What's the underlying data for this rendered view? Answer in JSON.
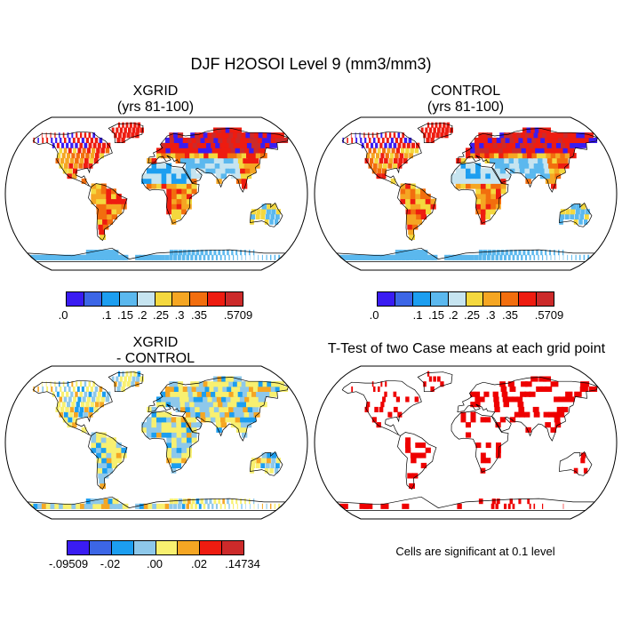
{
  "figure": {
    "title": "DJF H2OSOI Level 9 (mm3/mm3)"
  },
  "panels": [
    {
      "id": "xgrid",
      "title_line1": "XGRID",
      "title_line2": "(yrs 81-100)"
    },
    {
      "id": "control",
      "title_line1": "CONTROL",
      "title_line2": "(yrs 81-100)"
    },
    {
      "id": "diff",
      "title_line1": "XGRID",
      "title_line2": "- CONTROL"
    },
    {
      "id": "ttest",
      "title_line1": "T-Test of two Case means at each grid point"
    }
  ],
  "colorbars": {
    "absolute": {
      "colors": [
        "#3a1cf2",
        "#3c66e6",
        "#1c9ef0",
        "#5bb8ee",
        "#c6e4f0",
        "#f4d83e",
        "#f5a623",
        "#f26e0e",
        "#ee1c10",
        "#cc2a2a"
      ],
      "labels": [
        ".0",
        ".1",
        ".15",
        ".2",
        ".25",
        ".3",
        ".35",
        ".5709"
      ]
    },
    "difference": {
      "colors": [
        "#3a1cf2",
        "#3c66e6",
        "#1c9ef0",
        "#8ec8ea",
        "#f8f070",
        "#f5a623",
        "#ee1c10",
        "#cc2a2a"
      ],
      "labels": [
        "-.09509",
        "-.02",
        ".00",
        ".02",
        ".14734"
      ]
    }
  },
  "significance_color": "#ee0000",
  "note": "Cells are significant at 0.1 level"
}
